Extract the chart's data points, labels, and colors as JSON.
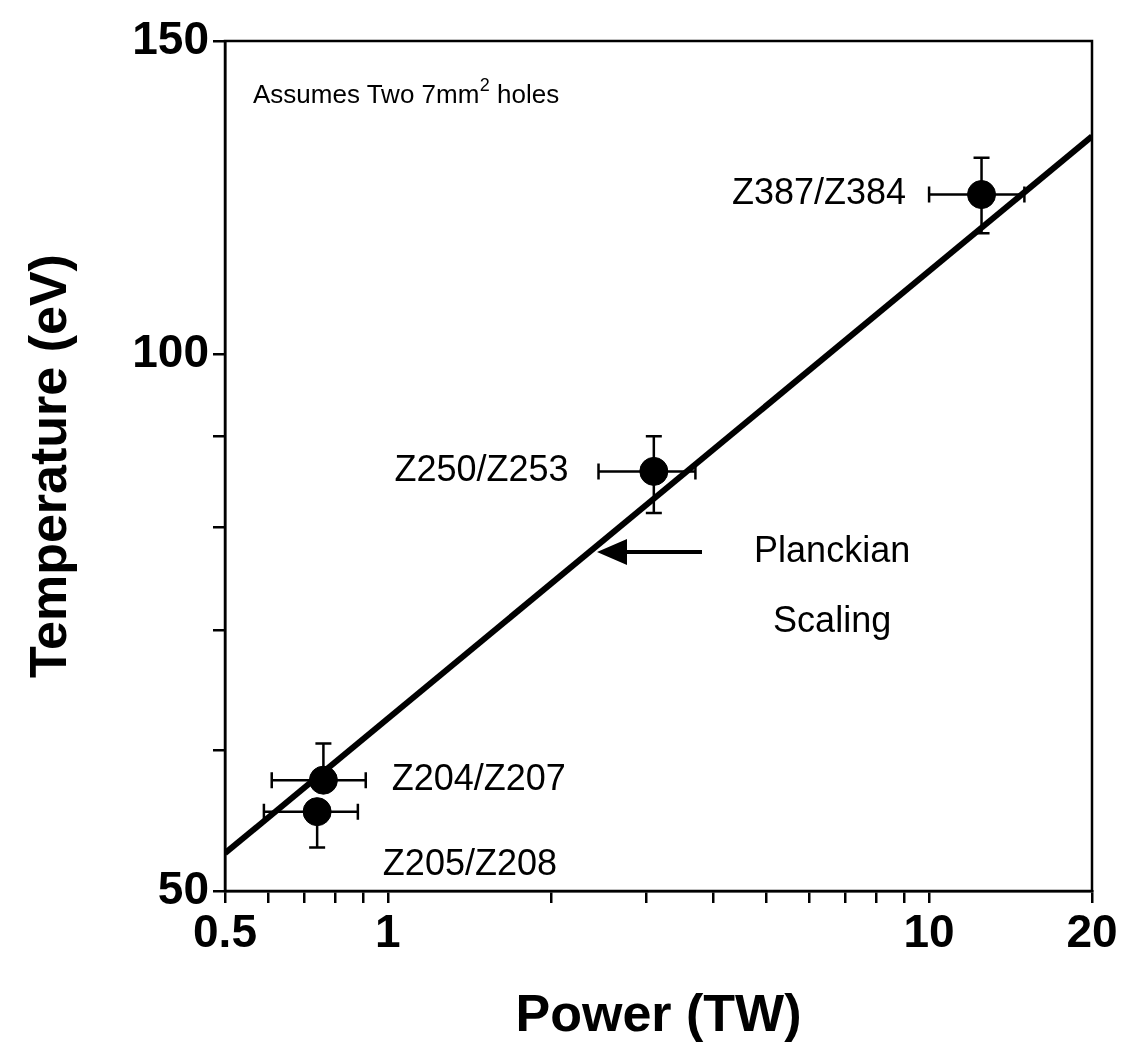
{
  "chart_data": {
    "type": "scatter",
    "xlabel": "Power (TW)",
    "ylabel": "Temperature (eV)",
    "log": "xy",
    "marker": "circle",
    "grid": false,
    "xlim": [
      0.5,
      20
    ],
    "ylim": [
      50,
      150
    ],
    "xticks": [
      0.5,
      {
        "value": 0.6,
        "label": null
      },
      {
        "value": 0.7,
        "label": null
      },
      {
        "value": 0.8,
        "label": null
      },
      {
        "value": 0.9,
        "label": null
      },
      1,
      {
        "value": 2,
        "label": null
      },
      {
        "value": 3,
        "label": null
      },
      {
        "value": 4,
        "label": null
      },
      {
        "value": 5,
        "label": null
      },
      {
        "value": 6,
        "label": null
      },
      {
        "value": 7,
        "label": null
      },
      {
        "value": 8,
        "label": null
      },
      {
        "value": 9,
        "label": null
      },
      10,
      20
    ],
    "yticks": [
      50,
      {
        "value": 60,
        "label": null
      },
      {
        "value": 70,
        "label": null
      },
      {
        "value": 80,
        "label": null
      },
      {
        "value": 90,
        "label": null
      },
      100,
      150
    ],
    "annotations": [
      "Assumes Two 7mm$^{2}$ holes",
      "Planckian Scaling"
    ],
    "series": [
      {
        "name": "Z387/Z384",
        "color": "#000000",
        "x": [
          12.5
        ],
        "values": [
          123
        ],
        "errors": [
          [
            117,
            129
          ]
        ],
        "xerrors": [
          [
            10,
            15
          ]
        ]
      },
      {
        "name": "Z250/Z253",
        "color": "#000000",
        "x": [
          3.1
        ],
        "values": [
          86
        ],
        "errors": [
          [
            81.5,
            90
          ]
        ],
        "xerrors": [
          [
            2.45,
            3.7
          ]
        ]
      },
      {
        "name": "Z204/Z207",
        "color": "#000000",
        "x": [
          0.76
        ],
        "values": [
          57.7
        ],
        "errors": [
          [
            57.7,
            60.5
          ]
        ],
        "xerrors": [
          [
            0.61,
            0.91
          ]
        ]
      },
      {
        "name": "Z205/Z208",
        "color": "#000000",
        "x": [
          0.74
        ],
        "values": [
          55.4
        ],
        "errors": [
          [
            52.9,
            55.4
          ]
        ],
        "xerrors": [
          [
            0.59,
            0.88
          ]
        ]
      },
      {
        "type": "line",
        "marker": "none",
        "color": "#000000",
        "x": [
          0.5,
          20
        ],
        "values": [
          52.5,
          132.6
        ]
      }
    ]
  }
}
